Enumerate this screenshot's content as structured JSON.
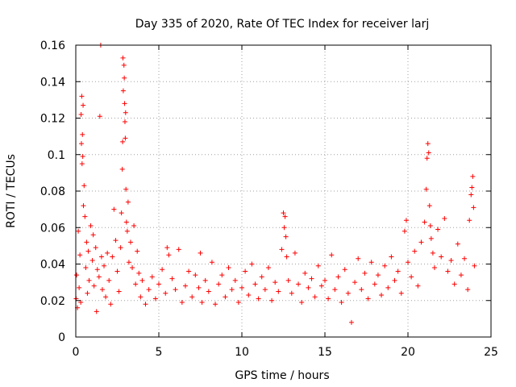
{
  "chart_data": {
    "type": "scatter",
    "title": "Day 335 of 2020, Rate Of TEC Index for receiver larj",
    "xlabel": "GPS time / hours",
    "ylabel": "ROTI / TECUs",
    "xlim": [
      0,
      25
    ],
    "ylim": [
      0,
      0.16
    ],
    "xticks": [
      0,
      5,
      10,
      15,
      20,
      25
    ],
    "xtick_labels": [
      "0",
      "5",
      "10",
      "15",
      "20",
      "25"
    ],
    "yticks": [
      0,
      0.02,
      0.04,
      0.06,
      0.08,
      0.1,
      0.12,
      0.14,
      0.16
    ],
    "ytick_labels": [
      "0",
      "0.02",
      "0.04",
      "0.06",
      "0.08",
      "0.1",
      "0.12",
      "0.14",
      "0.16"
    ],
    "grid": true,
    "marker": "plus",
    "color": "#ff0000",
    "series": [
      {
        "name": "ROTI",
        "points": [
          [
            0.02,
            0.021
          ],
          [
            0.05,
            0.034
          ],
          [
            0.1,
            0.016
          ],
          [
            0.15,
            0.058
          ],
          [
            0.2,
            0.027
          ],
          [
            0.25,
            0.045
          ],
          [
            0.3,
            0.019
          ],
          [
            0.32,
            0.122
          ],
          [
            0.34,
            0.106
          ],
          [
            0.36,
            0.132
          ],
          [
            0.38,
            0.095
          ],
          [
            0.4,
            0.111
          ],
          [
            0.42,
            0.099
          ],
          [
            0.44,
            0.127
          ],
          [
            0.46,
            0.072
          ],
          [
            0.5,
            0.083
          ],
          [
            0.55,
            0.066
          ],
          [
            0.6,
            0.038
          ],
          [
            0.65,
            0.052
          ],
          [
            0.7,
            0.024
          ],
          [
            0.75,
            0.047
          ],
          [
            0.8,
            0.031
          ],
          [
            0.9,
            0.061
          ],
          [
            1.0,
            0.042
          ],
          [
            1.05,
            0.056
          ],
          [
            1.1,
            0.028
          ],
          [
            1.2,
            0.049
          ],
          [
            1.25,
            0.014
          ],
          [
            1.3,
            0.037
          ],
          [
            1.4,
            0.033
          ],
          [
            1.45,
            0.121
          ],
          [
            1.5,
            0.16
          ],
          [
            1.55,
            0.044
          ],
          [
            1.6,
            0.026
          ],
          [
            1.7,
            0.039
          ],
          [
            1.8,
            0.022
          ],
          [
            1.9,
            0.046
          ],
          [
            2.0,
            0.031
          ],
          [
            2.1,
            0.018
          ],
          [
            2.2,
            0.044
          ],
          [
            2.3,
            0.07
          ],
          [
            2.4,
            0.053
          ],
          [
            2.5,
            0.036
          ],
          [
            2.6,
            0.025
          ],
          [
            2.7,
            0.049
          ],
          [
            2.75,
            0.068
          ],
          [
            2.8,
            0.092
          ],
          [
            2.82,
            0.107
          ],
          [
            2.84,
            0.153
          ],
          [
            2.86,
            0.135
          ],
          [
            2.9,
            0.149
          ],
          [
            2.92,
            0.142
          ],
          [
            2.94,
            0.128
          ],
          [
            2.96,
            0.118
          ],
          [
            2.98,
            0.109
          ],
          [
            3.0,
            0.123
          ],
          [
            3.02,
            0.081
          ],
          [
            3.05,
            0.063
          ],
          [
            3.1,
            0.058
          ],
          [
            3.15,
            0.074
          ],
          [
            3.2,
            0.041
          ],
          [
            3.3,
            0.052
          ],
          [
            3.4,
            0.038
          ],
          [
            3.5,
            0.061
          ],
          [
            3.6,
            0.029
          ],
          [
            3.7,
            0.047
          ],
          [
            3.8,
            0.035
          ],
          [
            3.9,
            0.022
          ],
          [
            4.0,
            0.031
          ],
          [
            4.2,
            0.018
          ],
          [
            4.4,
            0.026
          ],
          [
            4.6,
            0.033
          ],
          [
            4.8,
            0.021
          ],
          [
            5.0,
            0.029
          ],
          [
            5.2,
            0.037
          ],
          [
            5.4,
            0.024
          ],
          [
            5.5,
            0.049
          ],
          [
            5.6,
            0.045
          ],
          [
            5.8,
            0.032
          ],
          [
            6.0,
            0.026
          ],
          [
            6.2,
            0.048
          ],
          [
            6.4,
            0.019
          ],
          [
            6.6,
            0.028
          ],
          [
            6.8,
            0.036
          ],
          [
            7.0,
            0.022
          ],
          [
            7.2,
            0.034
          ],
          [
            7.4,
            0.027
          ],
          [
            7.5,
            0.046
          ],
          [
            7.6,
            0.019
          ],
          [
            7.8,
            0.031
          ],
          [
            8.0,
            0.025
          ],
          [
            8.2,
            0.041
          ],
          [
            8.4,
            0.018
          ],
          [
            8.6,
            0.029
          ],
          [
            8.8,
            0.034
          ],
          [
            9.0,
            0.022
          ],
          [
            9.2,
            0.038
          ],
          [
            9.4,
            0.026
          ],
          [
            9.6,
            0.031
          ],
          [
            9.8,
            0.019
          ],
          [
            10.0,
            0.027
          ],
          [
            10.2,
            0.036
          ],
          [
            10.4,
            0.023
          ],
          [
            10.6,
            0.04
          ],
          [
            10.8,
            0.029
          ],
          [
            11.0,
            0.021
          ],
          [
            11.2,
            0.033
          ],
          [
            11.4,
            0.026
          ],
          [
            11.6,
            0.038
          ],
          [
            11.8,
            0.02
          ],
          [
            12.0,
            0.03
          ],
          [
            12.2,
            0.025
          ],
          [
            12.4,
            0.048
          ],
          [
            12.5,
            0.068
          ],
          [
            12.55,
            0.06
          ],
          [
            12.6,
            0.066
          ],
          [
            12.65,
            0.055
          ],
          [
            12.7,
            0.044
          ],
          [
            12.8,
            0.031
          ],
          [
            13.0,
            0.024
          ],
          [
            13.2,
            0.046
          ],
          [
            13.4,
            0.029
          ],
          [
            13.6,
            0.019
          ],
          [
            13.8,
            0.035
          ],
          [
            14.0,
            0.027
          ],
          [
            14.2,
            0.032
          ],
          [
            14.4,
            0.022
          ],
          [
            14.6,
            0.039
          ],
          [
            14.8,
            0.028
          ],
          [
            15.0,
            0.031
          ],
          [
            15.2,
            0.021
          ],
          [
            15.4,
            0.045
          ],
          [
            15.6,
            0.026
          ],
          [
            15.8,
            0.033
          ],
          [
            16.0,
            0.019
          ],
          [
            16.2,
            0.037
          ],
          [
            16.4,
            0.024
          ],
          [
            16.6,
            0.008
          ],
          [
            16.8,
            0.03
          ],
          [
            17.0,
            0.043
          ],
          [
            17.2,
            0.026
          ],
          [
            17.4,
            0.035
          ],
          [
            17.6,
            0.021
          ],
          [
            17.8,
            0.041
          ],
          [
            18.0,
            0.029
          ],
          [
            18.2,
            0.034
          ],
          [
            18.4,
            0.023
          ],
          [
            18.6,
            0.039
          ],
          [
            18.8,
            0.027
          ],
          [
            19.0,
            0.044
          ],
          [
            19.2,
            0.031
          ],
          [
            19.4,
            0.036
          ],
          [
            19.6,
            0.024
          ],
          [
            19.8,
            0.058
          ],
          [
            19.9,
            0.064
          ],
          [
            20.0,
            0.041
          ],
          [
            20.2,
            0.033
          ],
          [
            20.4,
            0.047
          ],
          [
            20.6,
            0.028
          ],
          [
            20.8,
            0.052
          ],
          [
            21.0,
            0.063
          ],
          [
            21.1,
            0.081
          ],
          [
            21.15,
            0.098
          ],
          [
            21.2,
            0.106
          ],
          [
            21.25,
            0.101
          ],
          [
            21.3,
            0.072
          ],
          [
            21.35,
            0.061
          ],
          [
            21.4,
            0.054
          ],
          [
            21.5,
            0.046
          ],
          [
            21.6,
            0.038
          ],
          [
            21.8,
            0.059
          ],
          [
            22.0,
            0.044
          ],
          [
            22.2,
            0.065
          ],
          [
            22.4,
            0.036
          ],
          [
            22.6,
            0.042
          ],
          [
            22.8,
            0.029
          ],
          [
            23.0,
            0.051
          ],
          [
            23.2,
            0.034
          ],
          [
            23.4,
            0.043
          ],
          [
            23.6,
            0.026
          ],
          [
            23.7,
            0.064
          ],
          [
            23.8,
            0.078
          ],
          [
            23.85,
            0.082
          ],
          [
            23.9,
            0.088
          ],
          [
            23.95,
            0.071
          ],
          [
            24.0,
            0.039
          ]
        ]
      }
    ]
  }
}
